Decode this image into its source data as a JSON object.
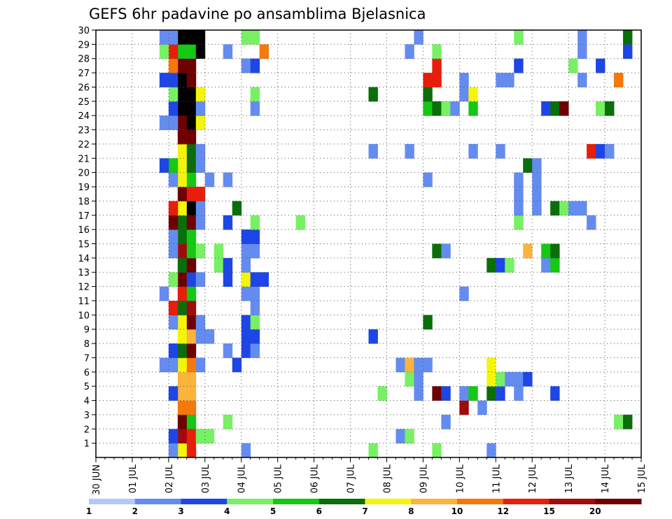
{
  "chart_data": {
    "type": "heatmap",
    "title": "GEFS 6hr padavine po ansamblima Bjelasnica",
    "xlabel": "",
    "ylabel": "",
    "x_tick_labels": [
      "30 JUN",
      "01 JUL",
      "02 JUL",
      "03 JUL",
      "04 JUL",
      "05 JUL",
      "06 JUL",
      "07 JUL",
      "08 JUL",
      "09 JUL",
      "10 JUL",
      "11 JUL",
      "12 JUL",
      "13 JUL",
      "14 JUL",
      "15 JUL"
    ],
    "y_tick_labels": [
      1,
      2,
      3,
      4,
      5,
      6,
      7,
      8,
      9,
      10,
      11,
      12,
      13,
      14,
      15,
      16,
      17,
      18,
      19,
      20,
      21,
      22,
      23,
      24,
      25,
      26,
      27,
      28,
      29,
      30
    ],
    "x_range_steps": [
      0,
      60
    ],
    "y_range": [
      0,
      30
    ],
    "grid": true,
    "colorbar": {
      "labels": [
        "1",
        "2",
        "3",
        "4",
        "5",
        "6",
        "7",
        "8",
        "10",
        "12",
        "15",
        "20"
      ],
      "colors": [
        "#b4c8fa",
        "#648cf0",
        "#1e46e6",
        "#78f064",
        "#14c814",
        "#0a6e0a",
        "#f5f50a",
        "#fab43c",
        "#f5780a",
        "#e61e0a",
        "#a00a0a",
        "#6e0000"
      ]
    },
    "cells": [
      [
        9,
        0,
        6
      ],
      [
        9,
        1,
        10
      ],
      [
        9,
        2,
        11
      ],
      [
        9,
        3,
        8
      ],
      [
        9,
        4,
        7
      ],
      [
        9,
        5,
        7
      ],
      [
        9,
        6,
        6
      ],
      [
        9,
        7,
        5
      ],
      [
        9,
        8,
        6
      ],
      [
        9,
        9,
        6
      ],
      [
        9,
        10,
        5
      ],
      [
        9,
        11,
        9
      ],
      [
        9,
        12,
        11
      ],
      [
        9,
        13,
        5
      ],
      [
        9,
        14,
        10
      ],
      [
        9,
        15,
        5
      ],
      [
        9,
        16,
        5
      ],
      [
        9,
        17,
        6
      ],
      [
        9,
        18,
        11
      ],
      [
        9,
        19,
        6
      ],
      [
        9,
        20,
        6
      ],
      [
        9,
        21,
        6
      ],
      [
        9,
        22,
        11
      ],
      [
        9,
        23,
        11
      ],
      [
        9,
        24,
        12
      ],
      [
        9,
        25,
        12
      ],
      [
        9,
        26,
        12
      ],
      [
        9,
        27,
        11
      ],
      [
        9,
        28,
        4
      ],
      [
        9,
        29,
        12
      ],
      [
        10,
        0,
        9
      ],
      [
        10,
        1,
        9
      ],
      [
        10,
        2,
        4
      ],
      [
        10,
        3,
        8
      ],
      [
        10,
        4,
        7
      ],
      [
        10,
        5,
        7
      ],
      [
        10,
        6,
        8
      ],
      [
        10,
        7,
        11
      ],
      [
        10,
        8,
        7
      ],
      [
        10,
        9,
        11
      ],
      [
        10,
        10,
        10
      ],
      [
        10,
        11,
        4
      ],
      [
        10,
        12,
        2
      ],
      [
        10,
        13,
        11
      ],
      [
        10,
        14,
        4
      ],
      [
        10,
        15,
        4
      ],
      [
        10,
        16,
        11
      ],
      [
        10,
        17,
        12
      ],
      [
        10,
        18,
        9
      ],
      [
        10,
        19,
        4
      ],
      [
        10,
        20,
        5
      ],
      [
        10,
        21,
        5
      ],
      [
        10,
        22,
        11
      ],
      [
        10,
        23,
        12
      ],
      [
        10,
        24,
        12
      ],
      [
        10,
        25,
        12
      ],
      [
        10,
        26,
        11
      ],
      [
        10,
        27,
        11
      ],
      [
        10,
        28,
        4
      ],
      [
        10,
        29,
        12
      ],
      [
        8,
        0,
        1
      ],
      [
        8,
        1,
        2
      ],
      [
        8,
        4,
        2
      ],
      [
        8,
        6,
        1
      ],
      [
        8,
        7,
        2
      ],
      [
        8,
        9,
        1
      ],
      [
        8,
        10,
        9
      ],
      [
        8,
        12,
        3
      ],
      [
        8,
        14,
        1
      ],
      [
        8,
        15,
        1
      ],
      [
        8,
        16,
        11
      ],
      [
        8,
        17,
        9
      ],
      [
        8,
        19,
        1
      ],
      [
        8,
        20,
        4
      ],
      [
        8,
        23,
        1
      ],
      [
        8,
        24,
        2
      ],
      [
        8,
        25,
        3
      ],
      [
        8,
        26,
        2
      ],
      [
        8,
        27,
        8
      ],
      [
        8,
        28,
        9
      ],
      [
        8,
        29,
        1
      ],
      [
        7,
        6,
        1
      ],
      [
        7,
        11,
        1
      ],
      [
        7,
        20,
        2
      ],
      [
        7,
        23,
        1
      ],
      [
        7,
        26,
        2
      ],
      [
        7,
        28,
        3
      ],
      [
        7,
        29,
        1
      ],
      [
        11,
        1,
        3
      ],
      [
        11,
        6,
        1
      ],
      [
        11,
        8,
        1
      ],
      [
        11,
        9,
        1
      ],
      [
        11,
        12,
        1
      ],
      [
        11,
        14,
        3
      ],
      [
        11,
        16,
        1
      ],
      [
        11,
        17,
        1
      ],
      [
        11,
        18,
        9
      ],
      [
        11,
        20,
        1
      ],
      [
        11,
        21,
        1
      ],
      [
        11,
        23,
        6
      ],
      [
        11,
        24,
        1
      ],
      [
        11,
        25,
        6
      ],
      [
        11,
        28,
        12
      ],
      [
        11,
        29,
        12
      ],
      [
        12,
        1,
        3
      ],
      [
        12,
        8,
        1
      ],
      [
        12,
        19,
        1
      ],
      [
        13,
        13,
        3
      ],
      [
        13,
        14,
        3
      ],
      [
        14,
        2,
        3
      ],
      [
        14,
        7,
        1
      ],
      [
        14,
        12,
        2
      ],
      [
        14,
        13,
        2
      ],
      [
        14,
        16,
        2
      ],
      [
        14,
        19,
        1
      ],
      [
        14,
        28,
        1
      ],
      [
        15,
        6,
        2
      ],
      [
        15,
        17,
        5
      ],
      [
        16,
        0,
        1
      ],
      [
        16,
        11,
        1
      ],
      [
        16,
        12,
        6
      ],
      [
        16,
        13,
        1
      ],
      [
        16,
        14,
        1
      ],
      [
        16,
        15,
        2
      ],
      [
        16,
        7,
        2
      ],
      [
        16,
        9,
        2
      ],
      [
        16,
        8,
        2
      ],
      [
        16,
        27,
        1
      ],
      [
        16,
        29,
        3
      ],
      [
        17,
        7,
        1
      ],
      [
        17,
        8,
        2
      ],
      [
        17,
        9,
        3
      ],
      [
        17,
        10,
        1
      ],
      [
        17,
        11,
        1
      ],
      [
        17,
        12,
        2
      ],
      [
        17,
        14,
        1
      ],
      [
        17,
        15,
        2
      ],
      [
        17,
        16,
        3
      ],
      [
        17,
        24,
        1
      ],
      [
        17,
        25,
        3
      ],
      [
        17,
        27,
        2
      ],
      [
        17,
        29,
        3
      ],
      [
        18,
        12,
        2
      ],
      [
        18,
        28,
        8
      ],
      [
        22,
        16,
        3
      ],
      [
        30,
        0,
        3
      ],
      [
        30,
        8,
        2
      ],
      [
        30,
        21,
        1
      ],
      [
        30,
        25,
        5
      ],
      [
        31,
        4,
        3
      ],
      [
        33,
        1,
        1
      ],
      [
        33,
        6,
        1
      ],
      [
        34,
        1,
        3
      ],
      [
        34,
        5,
        3
      ],
      [
        34,
        6,
        7
      ],
      [
        34,
        21,
        1
      ],
      [
        34,
        28,
        1
      ],
      [
        35,
        4,
        1
      ],
      [
        35,
        5,
        1
      ],
      [
        35,
        6,
        1
      ],
      [
        35,
        29,
        1
      ],
      [
        36,
        6,
        1
      ],
      [
        36,
        9,
        5
      ],
      [
        36,
        19,
        1
      ],
      [
        36,
        24,
        4
      ],
      [
        36,
        25,
        5
      ],
      [
        36,
        26,
        9
      ],
      [
        37,
        0,
        3
      ],
      [
        37,
        4,
        11
      ],
      [
        37,
        14,
        5
      ],
      [
        37,
        24,
        5
      ],
      [
        37,
        26,
        9
      ],
      [
        37,
        27,
        9
      ],
      [
        37,
        28,
        3
      ],
      [
        38,
        2,
        1
      ],
      [
        38,
        4,
        2
      ],
      [
        38,
        14,
        1
      ],
      [
        38,
        24,
        3
      ],
      [
        39,
        24,
        1
      ],
      [
        40,
        3,
        10
      ],
      [
        40,
        4,
        1
      ],
      [
        40,
        11,
        1
      ],
      [
        40,
        25,
        1
      ],
      [
        40,
        26,
        1
      ],
      [
        41,
        4,
        4
      ],
      [
        41,
        21,
        1
      ],
      [
        41,
        24,
        4
      ],
      [
        41,
        25,
        6
      ],
      [
        42,
        3,
        1
      ],
      [
        43,
        0,
        1
      ],
      [
        43,
        4,
        5
      ],
      [
        43,
        5,
        6
      ],
      [
        43,
        6,
        6
      ],
      [
        43,
        13,
        5
      ],
      [
        44,
        4,
        2
      ],
      [
        44,
        5,
        3
      ],
      [
        44,
        13,
        2
      ],
      [
        44,
        21,
        1
      ],
      [
        44,
        26,
        1
      ],
      [
        45,
        5,
        1
      ],
      [
        45,
        13,
        3
      ],
      [
        45,
        26,
        1
      ],
      [
        46,
        4,
        1
      ],
      [
        46,
        5,
        1
      ],
      [
        46,
        16,
        3
      ],
      [
        46,
        17,
        1
      ],
      [
        46,
        18,
        1
      ],
      [
        46,
        19,
        1
      ],
      [
        46,
        27,
        2
      ],
      [
        46,
        29,
        3
      ],
      [
        47,
        5,
        2
      ],
      [
        47,
        20,
        5
      ],
      [
        47,
        14,
        7
      ],
      [
        48,
        17,
        1
      ],
      [
        48,
        18,
        1
      ],
      [
        48,
        19,
        1
      ],
      [
        48,
        20,
        1
      ],
      [
        49,
        13,
        1
      ],
      [
        49,
        14,
        4
      ],
      [
        49,
        24,
        2
      ],
      [
        50,
        4,
        2
      ],
      [
        50,
        13,
        4
      ],
      [
        50,
        14,
        5
      ],
      [
        50,
        17,
        5
      ],
      [
        50,
        24,
        5
      ],
      [
        51,
        17,
        3
      ],
      [
        51,
        24,
        11
      ],
      [
        52,
        17,
        1
      ],
      [
        52,
        27,
        3
      ],
      [
        53,
        17,
        1
      ],
      [
        53,
        26,
        1
      ],
      [
        53,
        28,
        1
      ],
      [
        53,
        29,
        1
      ],
      [
        54,
        16,
        1
      ],
      [
        54,
        21,
        9
      ],
      [
        55,
        21,
        2
      ],
      [
        55,
        24,
        3
      ],
      [
        55,
        27,
        2
      ],
      [
        56,
        21,
        1
      ],
      [
        56,
        24,
        5
      ],
      [
        57,
        2,
        3
      ],
      [
        57,
        26,
        8
      ],
      [
        58,
        2,
        5
      ],
      [
        58,
        28,
        2
      ],
      [
        58,
        29,
        5
      ]
    ]
  }
}
